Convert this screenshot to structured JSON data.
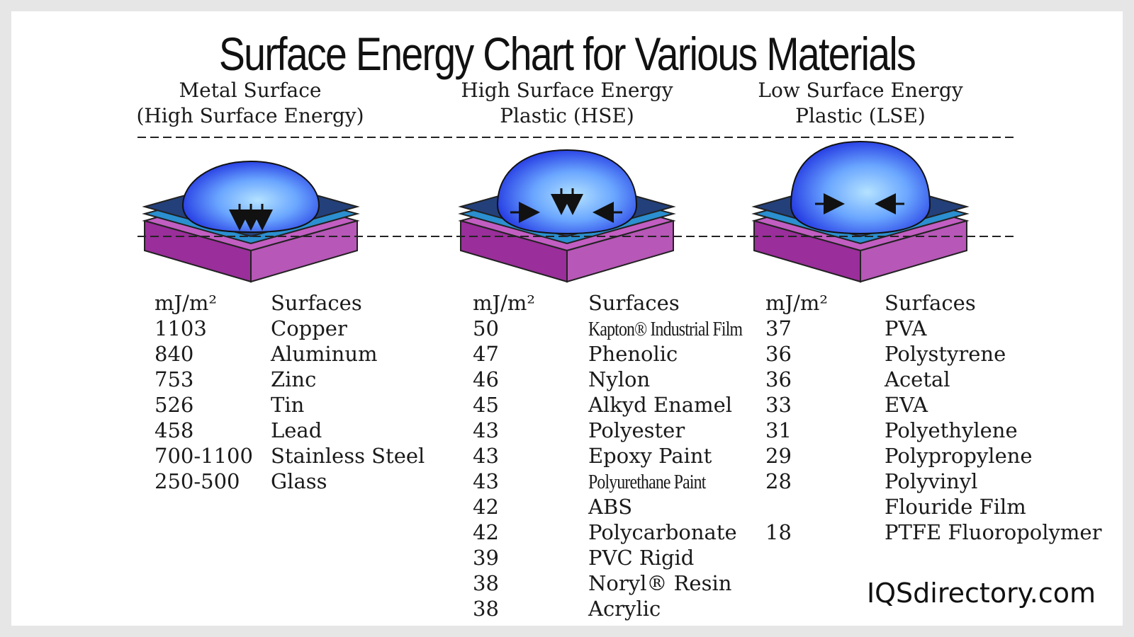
{
  "title": "Surface Energy Chart for Various Materials",
  "sections": [
    {
      "heading_line1": "Metal Surface",
      "heading_line2": "(High Surface Energy)",
      "unit_header": "mJ/m²",
      "surface_header": "Surfaces",
      "rows": [
        {
          "value": "1103",
          "surface": "Copper"
        },
        {
          "value": "840",
          "surface": "Aluminum"
        },
        {
          "value": "753",
          "surface": "Zinc"
        },
        {
          "value": "526",
          "surface": "Tin"
        },
        {
          "value": "458",
          "surface": "Lead"
        },
        {
          "value": "700-1100",
          "surface": "Stainless Steel"
        },
        {
          "value": "250-500",
          "surface": "Glass"
        }
      ]
    },
    {
      "heading_line1": "High Surface Energy",
      "heading_line2": "Plastic (HSE)",
      "unit_header": "mJ/m²",
      "surface_header": "Surfaces",
      "rows": [
        {
          "value": "50",
          "surface": "Kapton® Industrial Film"
        },
        {
          "value": "47",
          "surface": "Phenolic"
        },
        {
          "value": "46",
          "surface": "Nylon"
        },
        {
          "value": "45",
          "surface": "Alkyd Enamel"
        },
        {
          "value": "43",
          "surface": "Polyester"
        },
        {
          "value": "43",
          "surface": "Epoxy Paint"
        },
        {
          "value": "43",
          "surface": "Polyurethane Paint"
        },
        {
          "value": "42",
          "surface": "ABS"
        },
        {
          "value": "42",
          "surface": "Polycarbonate"
        },
        {
          "value": "39",
          "surface": "PVC Rigid"
        },
        {
          "value": "38",
          "surface": "Noryl® Resin"
        },
        {
          "value": "38",
          "surface": "Acrylic"
        }
      ]
    },
    {
      "heading_line1": "Low Surface Energy",
      "heading_line2": "Plastic (LSE)",
      "unit_header": "mJ/m²",
      "surface_header": "Surfaces",
      "rows": [
        {
          "value": "37",
          "surface": "PVA"
        },
        {
          "value": "36",
          "surface": "Polystyrene"
        },
        {
          "value": "36",
          "surface": "Acetal"
        },
        {
          "value": "33",
          "surface": "EVA"
        },
        {
          "value": "31",
          "surface": "Polyethylene"
        },
        {
          "value": "29",
          "surface": "Polypropylene"
        },
        {
          "value": "28",
          "surface": "Polyvinyl"
        },
        {
          "value": "",
          "surface": "Flouride Film"
        },
        {
          "value": "18",
          "surface": "PTFE Fluoropolymer"
        }
      ]
    }
  ],
  "brand": "IQSdirectory.com",
  "colors": {
    "droplet_center": "#a8dcff",
    "droplet_edge": "#1a22e0",
    "plate_top": "#23407a",
    "plate_middle": "#2b8fd0",
    "base_front": "#9a2e9a",
    "base_side": "#b757b7",
    "base_top": "#c25ec2"
  },
  "icons": {
    "droplet_arrows_down": "arrow-down-icon",
    "droplet_arrows_side": "arrow-right-icon / arrow-left-icon"
  }
}
